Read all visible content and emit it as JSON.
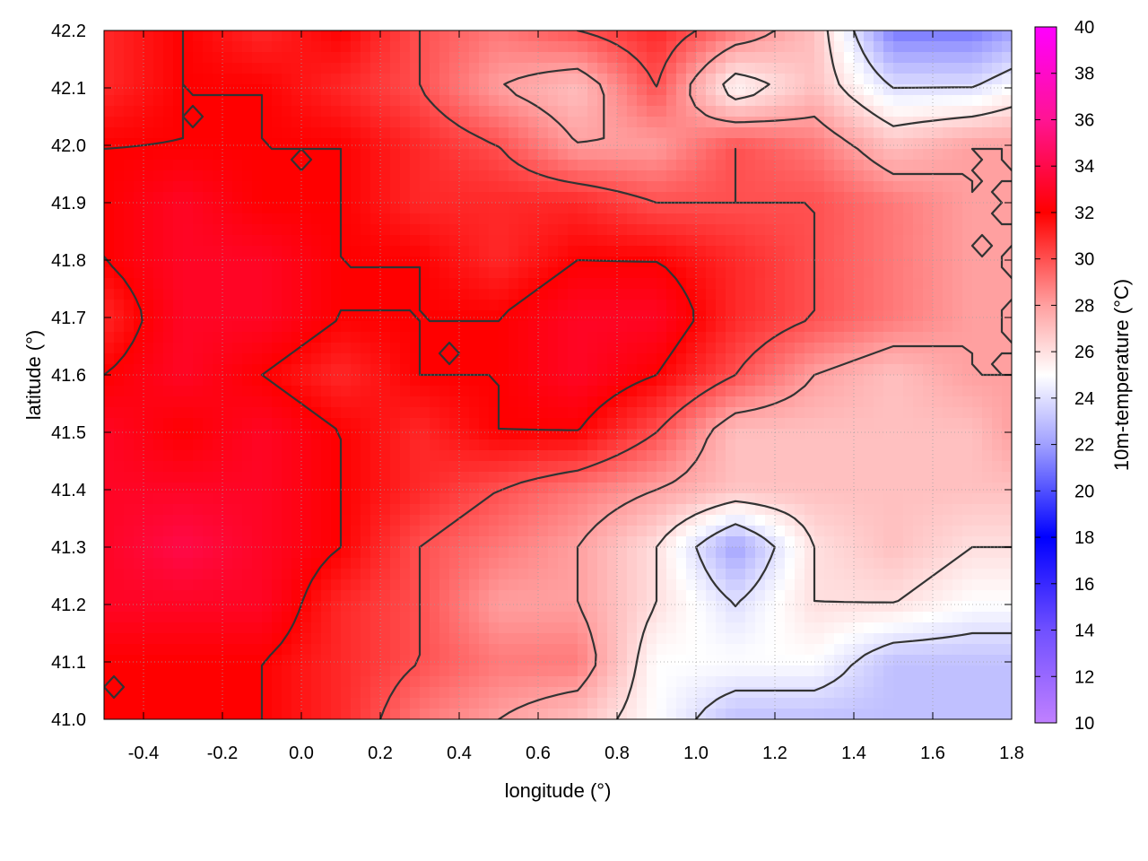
{
  "chart_data": {
    "type": "heatmap",
    "xlabel": "longitude (°)",
    "ylabel": "latitude (°)",
    "colorbar_label": "10m-temperature (°C)",
    "xlim": [
      -0.5,
      1.8
    ],
    "ylim": [
      41.0,
      42.2
    ],
    "zlim": [
      10,
      40
    ],
    "x_ticks": [
      "-0.4",
      "-0.2",
      "0.0",
      "0.2",
      "0.4",
      "0.6",
      "0.8",
      "1.0",
      "1.2",
      "1.4",
      "1.6",
      "1.8"
    ],
    "y_ticks": [
      "41.0",
      "41.1",
      "41.2",
      "41.3",
      "41.4",
      "41.5",
      "41.6",
      "41.7",
      "41.8",
      "41.9",
      "42.0",
      "42.1",
      "42.2"
    ],
    "colorbar_ticks": [
      "10",
      "12",
      "14",
      "16",
      "18",
      "20",
      "22",
      "24",
      "26",
      "28",
      "30",
      "32",
      "34",
      "36",
      "38",
      "40"
    ],
    "colormap": [
      {
        "value": 10,
        "color": "#c080ff"
      },
      {
        "value": 14,
        "color": "#7050ff"
      },
      {
        "value": 18,
        "color": "#0000ff"
      },
      {
        "value": 22,
        "color": "#a0a0ff"
      },
      {
        "value": 25,
        "color": "#ffffff"
      },
      {
        "value": 28,
        "color": "#ffa0a0"
      },
      {
        "value": 32,
        "color": "#ff0000"
      },
      {
        "value": 36,
        "color": "#ff1493"
      },
      {
        "value": 40,
        "color": "#ff00ff"
      }
    ],
    "contour_levels": [
      24,
      26,
      28,
      30,
      32
    ],
    "field": {
      "lon": [
        -0.5,
        -0.3,
        -0.1,
        0.1,
        0.3,
        0.5,
        0.7,
        0.9,
        1.1,
        1.3,
        1.5,
        1.7,
        1.8
      ],
      "lat": [
        42.2,
        42.1,
        42.0,
        41.9,
        41.8,
        41.7,
        41.6,
        41.5,
        41.4,
        41.3,
        41.2,
        41.1,
        41.0
      ],
      "temperature": [
        [
          31,
          32,
          31,
          32,
          30,
          29,
          30,
          31,
          29,
          27,
          21,
          21,
          22
        ],
        [
          31,
          32,
          32,
          31,
          30,
          28,
          27,
          30,
          25,
          27,
          24,
          24,
          25
        ],
        [
          32,
          32,
          32,
          32,
          31,
          30,
          28,
          28,
          30,
          29,
          27,
          28,
          28
        ],
        [
          32,
          33,
          32,
          32,
          31,
          31,
          31,
          30,
          30,
          30,
          29,
          28,
          28
        ],
        [
          32,
          33,
          33,
          32,
          32,
          31,
          32,
          32,
          31,
          30,
          29,
          28,
          28
        ],
        [
          31,
          33,
          33,
          32,
          32,
          32,
          33,
          33,
          31,
          30,
          29,
          28,
          28
        ],
        [
          32,
          33,
          32,
          31,
          32,
          32,
          33,
          32,
          30,
          28,
          27,
          28,
          28
        ],
        [
          33,
          32,
          33,
          32,
          31,
          32,
          32,
          30,
          27,
          27,
          27,
          27,
          28
        ],
        [
          33,
          33,
          33,
          32,
          31,
          30,
          29,
          28,
          27,
          27,
          27,
          27,
          27
        ],
        [
          33,
          34,
          33,
          32,
          30,
          29,
          28,
          26,
          22,
          26,
          27,
          26,
          26
        ],
        [
          33,
          33,
          33,
          31,
          30,
          28,
          28,
          26,
          24,
          26,
          26,
          25,
          25
        ],
        [
          32,
          32,
          32,
          31,
          30,
          29,
          29,
          25,
          25,
          25,
          23,
          23,
          23
        ],
        [
          32,
          32,
          32,
          31,
          29,
          28,
          27,
          25,
          23,
          23,
          23,
          23,
          23
        ]
      ]
    }
  }
}
